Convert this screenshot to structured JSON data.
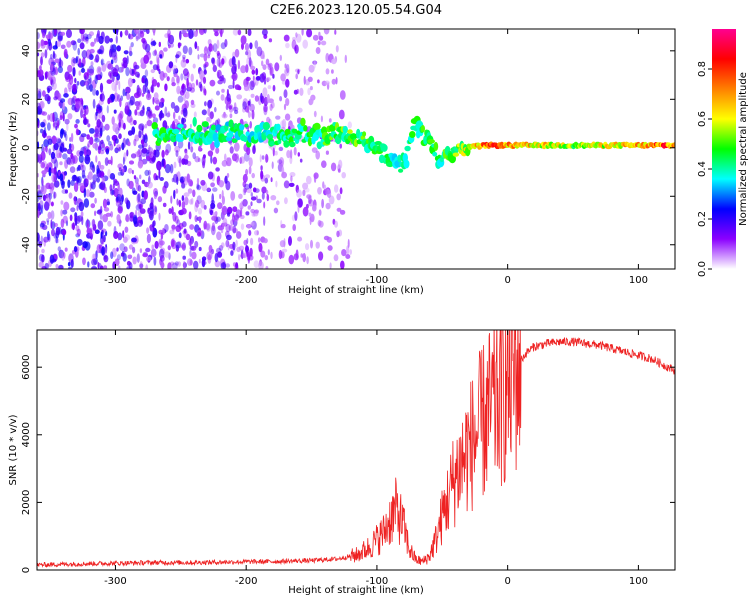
{
  "title": "C2E6.2023.120.05.54.G04",
  "colorbar": {
    "label": "Normalized spectral amplitude",
    "range": [
      0,
      0.96
    ],
    "ticks": [
      "0.0",
      "0.2",
      "0.4",
      "0.6",
      "0.8"
    ],
    "tick_values": [
      0,
      0.2,
      0.4,
      0.6,
      0.8
    ],
    "colormap": [
      "#ffffff",
      "#8b00ff",
      "#0000ff",
      "#00ffff",
      "#00ff00",
      "#ffff00",
      "#ff8000",
      "#ff0000",
      "#ff0090"
    ]
  },
  "chart_data": [
    {
      "type": "heatmap",
      "xlabel": "Height of straight line (km)",
      "ylabel": "Frequency (Hz)",
      "xlim": [
        -360,
        128
      ],
      "ylim": [
        -50,
        49
      ],
      "xticks": [
        -300,
        -200,
        -100,
        0,
        100
      ],
      "xtick_labels": [
        "-300",
        "-200",
        "-100",
        "0",
        "100"
      ],
      "yticks": [
        -40,
        -20,
        0,
        20,
        40
      ],
      "ytick_labels": [
        "-40",
        "-20",
        "0",
        "20",
        "40"
      ],
      "features": {
        "noise_region_x": [
          -360,
          -120
        ],
        "carrier_trace": [
          {
            "x": -270,
            "f": 5,
            "amp": 0.5
          },
          {
            "x": -250,
            "f": 6,
            "amp": 0.45
          },
          {
            "x": -180,
            "f": 6,
            "amp": 0.45
          },
          {
            "x": -150,
            "f": 6,
            "amp": 0.5
          },
          {
            "x": -120,
            "f": 5,
            "amp": 0.55
          },
          {
            "x": -100,
            "f": 0,
            "amp": 0.5
          },
          {
            "x": -80,
            "f": -8,
            "amp": 0.45
          },
          {
            "x": -70,
            "f": 10,
            "amp": 0.5
          },
          {
            "x": -50,
            "f": -5,
            "amp": 0.5
          },
          {
            "x": -35,
            "f": 0,
            "amp": 0.6
          },
          {
            "x": -15,
            "f": 1,
            "amp": 0.85
          },
          {
            "x": 0,
            "f": 1,
            "amp": 0.8
          },
          {
            "x": 50,
            "f": 1,
            "amp": 0.6
          },
          {
            "x": 100,
            "f": 1,
            "amp": 0.75
          },
          {
            "x": 120,
            "f": 1,
            "amp": 0.85
          }
        ]
      }
    },
    {
      "type": "line",
      "xlabel": "Height of straight line (km)",
      "ylabel": "SNR (10 * v/v)",
      "xlim": [
        -360,
        128
      ],
      "ylim": [
        0,
        7100
      ],
      "xticks": [
        -300,
        -200,
        -100,
        0,
        100
      ],
      "xtick_labels": [
        "-300",
        "-200",
        "-100",
        "0",
        "100"
      ],
      "yticks": [
        0,
        2000,
        4000,
        6000
      ],
      "ytick_labels": [
        "0",
        "2000",
        "4000",
        "6000"
      ],
      "color": "#ee2222",
      "series": [
        {
          "x": [
            -360,
            -330,
            -300,
            -270,
            -240,
            -210,
            -180,
            -150,
            -130,
            -115,
            -105,
            -95,
            -90,
            -85,
            -80,
            -75,
            -70,
            -65,
            -60,
            -55,
            -50,
            -45,
            -40,
            -35,
            -30,
            -25,
            -20,
            -15,
            -10,
            -5,
            0,
            5,
            10,
            15,
            20,
            30,
            40,
            50,
            60,
            70,
            80,
            90,
            100,
            110,
            120,
            128
          ],
          "y": [
            150,
            180,
            200,
            220,
            220,
            240,
            250,
            280,
            330,
            450,
            700,
            1100,
            1500,
            1800,
            1350,
            600,
            300,
            250,
            400,
            900,
            1600,
            2200,
            2800,
            3200,
            3600,
            3900,
            4300,
            4600,
            4900,
            5200,
            5500,
            5900,
            6200,
            6450,
            6600,
            6700,
            6750,
            6750,
            6700,
            6650,
            6550,
            6450,
            6350,
            6250,
            6050,
            5900
          ]
        }
      ]
    }
  ]
}
